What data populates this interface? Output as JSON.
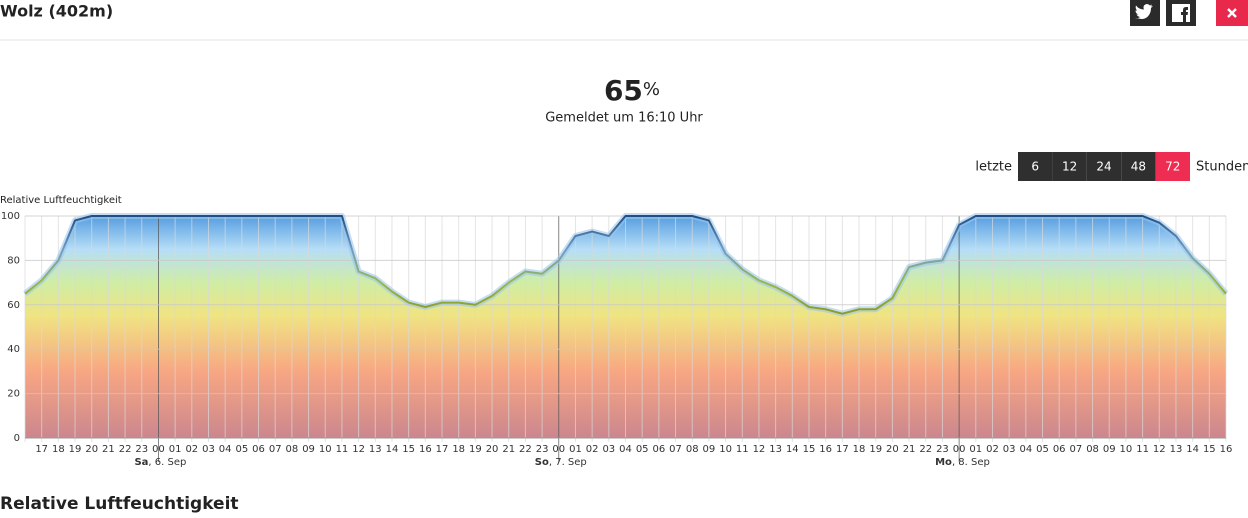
{
  "header": {
    "title": "Wolz (402m)"
  },
  "current": {
    "value": 65,
    "unit": "%",
    "reported": "Gemeldet um 16:10 Uhr"
  },
  "range": {
    "label_before": "letzte",
    "options": [
      6,
      12,
      24,
      48,
      72
    ],
    "selected": 72,
    "label_after": "Stunden"
  },
  "section_heading": "Relative Luftfeuchtigkeit",
  "chart_data": {
    "type": "area",
    "y_label": "Relative Luftfeuchtigkeit",
    "categories": [
      null,
      "17",
      "18",
      "19",
      "20",
      "21",
      "22",
      "23",
      "00",
      "01",
      "02",
      "03",
      "04",
      "05",
      "06",
      "07",
      "08",
      "09",
      "10",
      "11",
      "12",
      "13",
      "14",
      "15",
      "16",
      "17",
      "18",
      "19",
      "20",
      "21",
      "22",
      "23",
      "00",
      "01",
      "02",
      "03",
      "04",
      "05",
      "06",
      "07",
      "08",
      "09",
      "10",
      "11",
      "12",
      "13",
      "14",
      "15",
      "16",
      "17",
      "18",
      "19",
      "20",
      "21",
      "22",
      "23",
      "00",
      "01",
      "02",
      "03",
      "04",
      "05",
      "06",
      "07",
      "08",
      "09",
      "10",
      "11",
      "12",
      "13",
      "14",
      "15",
      "16"
    ],
    "values": [
      65,
      71,
      80,
      98,
      100,
      100,
      100,
      100,
      100,
      100,
      100,
      100,
      100,
      100,
      100,
      100,
      100,
      100,
      100,
      100,
      75,
      72,
      66,
      61,
      59,
      61,
      61,
      60,
      64,
      70,
      75,
      74,
      80,
      91,
      93,
      91,
      100,
      100,
      100,
      100,
      100,
      98,
      83,
      76,
      71,
      68,
      64,
      59,
      58,
      56,
      58,
      58,
      63,
      77,
      79,
      80,
      96,
      100,
      100,
      100,
      100,
      100,
      100,
      100,
      100,
      100,
      100,
      100,
      97,
      91,
      81,
      74,
      65
    ],
    "day_labels": [
      {
        "day": "Sa",
        "date": ", 6. Sep"
      },
      {
        "day": "So",
        "date": ", 7. Sep"
      },
      {
        "day": "Mo",
        "date": ", 8. Sep"
      }
    ],
    "ylim": [
      0,
      100
    ],
    "yticks": [
      0,
      20,
      40,
      60,
      80,
      100
    ],
    "grid": true
  }
}
